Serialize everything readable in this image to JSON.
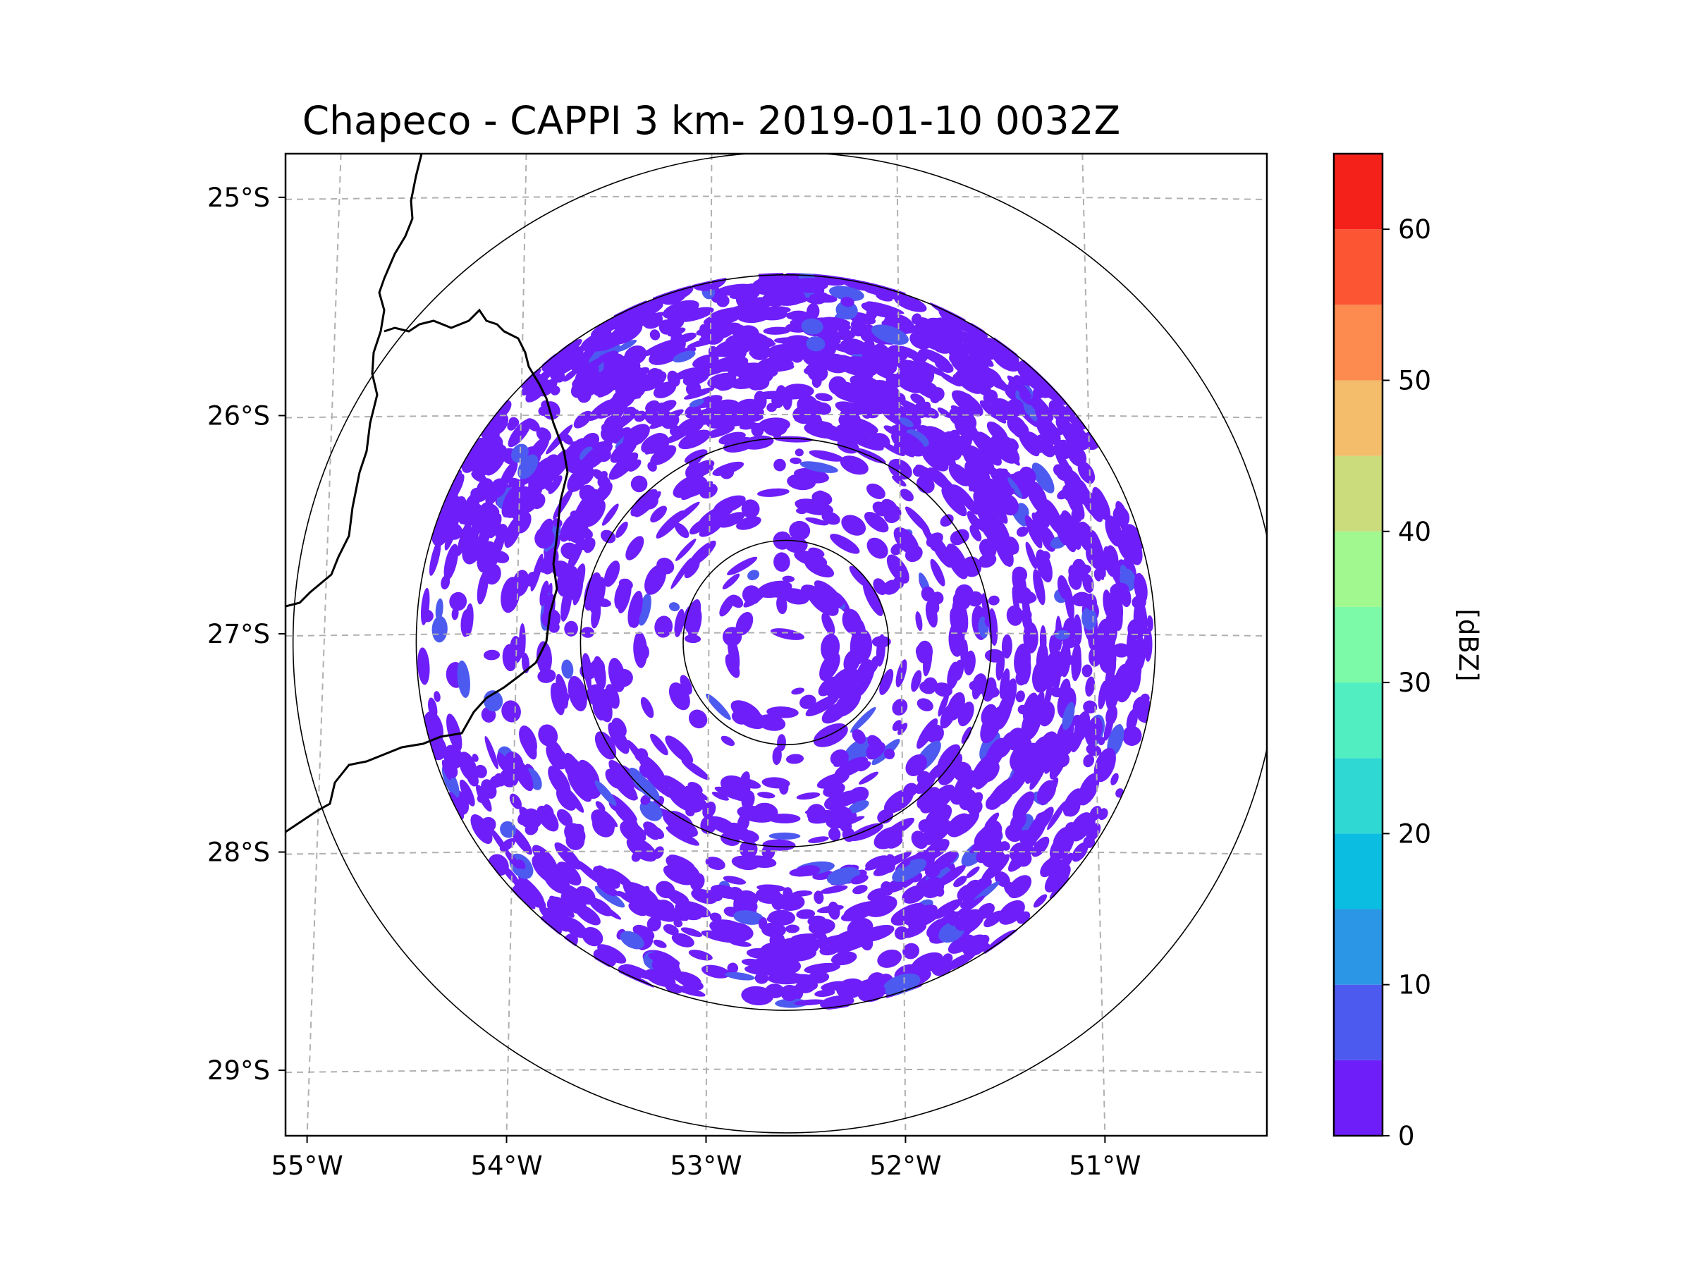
{
  "chart_data": {
    "type": "radar-ppi-map",
    "title": "Chapeco - CAPPI 3 km- 2019-01-10 0032Z",
    "radar_site": {
      "name": "Chapeco",
      "lon": -52.6,
      "lat": -27.04
    },
    "map_extent": {
      "lon": [
        -55.2,
        -50.1
      ],
      "lat": [
        -29.3,
        -24.8
      ]
    },
    "lon_ticks": [
      {
        "value": -55,
        "label": "55°W"
      },
      {
        "value": -54,
        "label": "54°W"
      },
      {
        "value": -53,
        "label": "53°W"
      },
      {
        "value": -52,
        "label": "52°W"
      },
      {
        "value": -51,
        "label": "51°W"
      }
    ],
    "lat_ticks": [
      {
        "value": -25,
        "label": "25°S"
      },
      {
        "value": -26,
        "label": "26°S"
      },
      {
        "value": -27,
        "label": "27°S"
      },
      {
        "value": -28,
        "label": "28°S"
      },
      {
        "value": -29,
        "label": "29°S"
      }
    ],
    "range_rings_deg": [
      0.5,
      1.0,
      1.8,
      2.4
    ],
    "colorbar": {
      "label": "[dBZ]",
      "range": [
        0,
        65
      ],
      "ticks": [
        {
          "value": 0,
          "label": "0"
        },
        {
          "value": 10,
          "label": "10"
        },
        {
          "value": 20,
          "label": "20"
        },
        {
          "value": 30,
          "label": "30"
        },
        {
          "value": 40,
          "label": "40"
        },
        {
          "value": 50,
          "label": "50"
        },
        {
          "value": 60,
          "label": "60"
        }
      ],
      "levels": [
        {
          "from": 0,
          "to": 5,
          "color": "#6e1ef8"
        },
        {
          "from": 5,
          "to": 10,
          "color": "#4d5af0"
        },
        {
          "from": 10,
          "to": 15,
          "color": "#2c96e6"
        },
        {
          "from": 15,
          "to": 20,
          "color": "#0cbde2"
        },
        {
          "from": 20,
          "to": 25,
          "color": "#2fd8d2"
        },
        {
          "from": 25,
          "to": 30,
          "color": "#50eec0"
        },
        {
          "from": 30,
          "to": 35,
          "color": "#7dfaa8"
        },
        {
          "from": 35,
          "to": 40,
          "color": "#a0f88e"
        },
        {
          "from": 40,
          "to": 45,
          "color": "#cadc7b"
        },
        {
          "from": 45,
          "to": 50,
          "color": "#f3bd6b"
        },
        {
          "from": 50,
          "to": 55,
          "color": "#fd8b4f"
        },
        {
          "from": 55,
          "to": 60,
          "color": "#fb5533"
        },
        {
          "from": 60,
          "to": 65,
          "color": "#f4211a"
        }
      ]
    },
    "echo_color": "#6e1ef8",
    "echo_accent_color": "#4d5af0"
  }
}
